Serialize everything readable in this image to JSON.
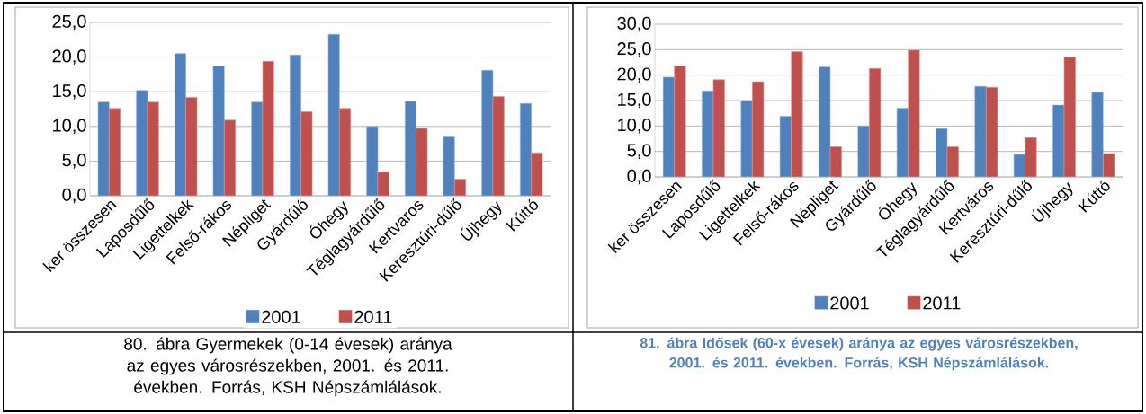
{
  "chart_data": [
    {
      "type": "bar",
      "categories": [
        "ker összesen",
        "Laposdűlő",
        "Ligettelkek",
        "Felső-rákos",
        "Népliget",
        "Gyárdűlő",
        "Óhegy",
        "Téglagyárdűlő",
        "Kertváros",
        "Keresztúri-dűlő",
        "Újhegy",
        "Kúttó"
      ],
      "series": [
        {
          "name": "2001",
          "color": "#4f81bd",
          "values": [
            13.5,
            15.2,
            20.5,
            18.7,
            13.5,
            20.3,
            23.3,
            10.0,
            13.6,
            8.6,
            18.1,
            13.3
          ]
        },
        {
          "name": "2011",
          "color": "#c0504d",
          "values": [
            12.6,
            13.5,
            14.2,
            10.9,
            19.4,
            12.1,
            12.6,
            3.4,
            9.7,
            2.4,
            14.3,
            6.2
          ]
        }
      ],
      "ylim": [
        0,
        25
      ],
      "yticks": [
        {
          "value": 0,
          "label": "0,0"
        },
        {
          "value": 5,
          "label": "5,0"
        },
        {
          "value": 10,
          "label": "10,0"
        },
        {
          "value": 15,
          "label": "15,0"
        },
        {
          "value": 20,
          "label": "20,0"
        },
        {
          "value": 25,
          "label": "25,0"
        }
      ],
      "grid": "y",
      "legend": "bottom",
      "annotations": [
        "80. ábra  Gyermekek (0-14 évesek) aránya az egyes városrészekben, 2001. és 2011. években. Forrás, KSH Népszámlálások."
      ]
    },
    {
      "type": "bar",
      "categories": [
        "ker összesen",
        "Laposdűlő",
        "Ligettelkek",
        "Felső-rákos",
        "Népliget",
        "Gyárdűlő",
        "Óhegy",
        "Téglagyárdűlő",
        "Kertváros",
        "Keresztúri-dűlő",
        "Újhegy",
        "Kúttó"
      ],
      "series": [
        {
          "name": "2001",
          "color": "#4f81bd",
          "values": [
            19.6,
            16.9,
            15.0,
            11.9,
            21.6,
            10.0,
            13.5,
            9.5,
            17.8,
            4.4,
            14.1,
            16.6
          ]
        },
        {
          "name": "2011",
          "color": "#c0504d",
          "values": [
            21.8,
            19.1,
            18.7,
            24.6,
            5.9,
            21.3,
            24.9,
            5.9,
            17.6,
            7.7,
            23.5,
            4.6
          ]
        }
      ],
      "ylim": [
        0,
        30
      ],
      "yticks": [
        {
          "value": 0,
          "label": "0,0"
        },
        {
          "value": 5,
          "label": "5,0"
        },
        {
          "value": 10,
          "label": "10,0"
        },
        {
          "value": 15,
          "label": "15,0"
        },
        {
          "value": 20,
          "label": "20,0"
        },
        {
          "value": 25,
          "label": "25,0"
        },
        {
          "value": 30,
          "label": "30,0"
        }
      ],
      "grid": "y",
      "legend": "bottom",
      "annotations": [
        "81. ábra  Idősek (60-x évesek) aránya az egyes városrészekben, 2001. és 2011. években. Forrás, KSH Népszámlálások."
      ]
    }
  ]
}
